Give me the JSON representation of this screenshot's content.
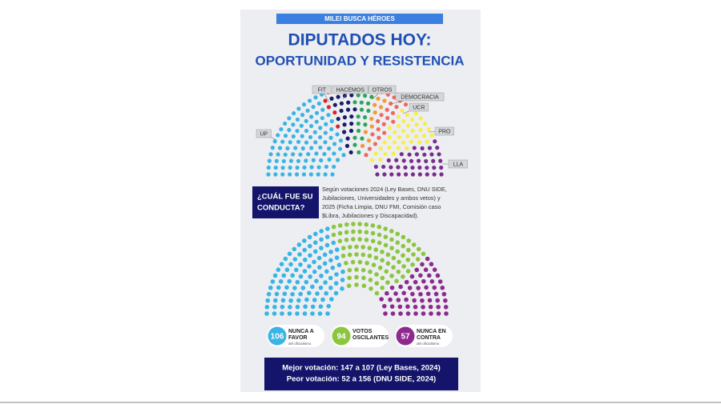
{
  "banner": "MILEI BUSCA HÉROES",
  "title": [
    "DIPUTADOS HOY:",
    "OPORTUNIDAD Y RESISTENCIA"
  ],
  "chart_data": [
    {
      "type": "parliament",
      "series": [
        {
          "name": "UP",
          "color": "#3ab4e4",
          "values": [
            99
          ]
        },
        {
          "name": "FIT",
          "color": "#d9262c",
          "values": [
            5
          ]
        },
        {
          "name": "HACEMOS",
          "color": "#1b1b6b",
          "values": [
            23
          ]
        },
        {
          "name": "OTROS",
          "color": "#2da55a",
          "values": [
            20
          ]
        },
        {
          "name": "DEMOCRACIA",
          "color": "#f39a34",
          "values": [
            12
          ]
        },
        {
          "name": "UCR",
          "color": "#ec6a5e",
          "values": [
            20
          ]
        },
        {
          "name": "PRO",
          "color": "#f6ee4c",
          "values": [
            39
          ]
        },
        {
          "name": "LLA",
          "color": "#7a2d8e",
          "values": [
            39
          ]
        }
      ]
    },
    {
      "type": "parliament",
      "series": [
        {
          "name": [
            "NUNCA A",
            "FAVOR"
          ],
          "sublabel": "del oficialismo",
          "color": "#3ab4e4",
          "values": [
            106
          ]
        },
        {
          "name": [
            "VOTOS",
            "OSCILANTES"
          ],
          "color": "#8cc63f",
          "values": [
            94
          ]
        },
        {
          "name": [
            "NUNCA EN",
            "CONTRA"
          ],
          "sublabel": "del oficialismo",
          "color": "#8e2a8e",
          "values": [
            57
          ]
        }
      ]
    }
  ],
  "question": [
    "¿CUÁL FUE SU",
    "CONDUCTA?"
  ],
  "note": [
    "Según votaciones 2024 (Ley Bases, DNU SIDE,",
    "Jubilaciones, Universidades y ambos vetos) y",
    "2025 (Ficha Limpia, DNU FMI, Comisión caso",
    "$Libra, Jubilaciones y Discapacidad)."
  ],
  "footer": [
    "Mejor votación: 147 a 107 (Ley Bases, 2024)",
    "Peor votación: 52 a 156 (DNU SIDE, 2024)"
  ]
}
